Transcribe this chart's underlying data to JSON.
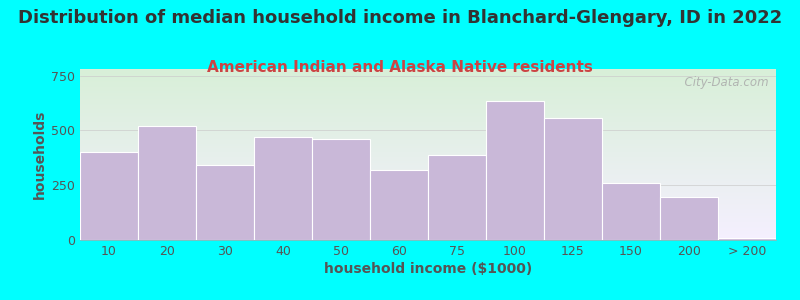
{
  "title": "Distribution of median household income in Blanchard-Glengary, ID in 2022",
  "subtitle": "American Indian and Alaska Native residents",
  "xlabel": "household income ($1000)",
  "ylabel": "households",
  "background_outer": "#00FFFF",
  "bar_color": "#c9b8d8",
  "bar_edge_color": "#ffffff",
  "categories": [
    "10",
    "20",
    "30",
    "40",
    "50",
    "60",
    "75",
    "100",
    "125",
    "150",
    "200",
    "> 200"
  ],
  "values": [
    400,
    520,
    340,
    470,
    460,
    320,
    390,
    635,
    555,
    260,
    195,
    8
  ],
  "ylim": [
    0,
    780
  ],
  "yticks": [
    0,
    250,
    500,
    750
  ],
  "title_fontsize": 13,
  "subtitle_fontsize": 11,
  "axis_label_fontsize": 10,
  "tick_fontsize": 9,
  "title_color": "#333333",
  "subtitle_color": "#cc4444",
  "axis_label_color": "#555555",
  "tick_color": "#555555",
  "watermark_text": "  City-Data.com",
  "watermark_color": "#aaaaaa",
  "grid_color": "#cccccc",
  "bg_top_left": "#d8efd8",
  "bg_bottom_right": "#f5f0ff"
}
